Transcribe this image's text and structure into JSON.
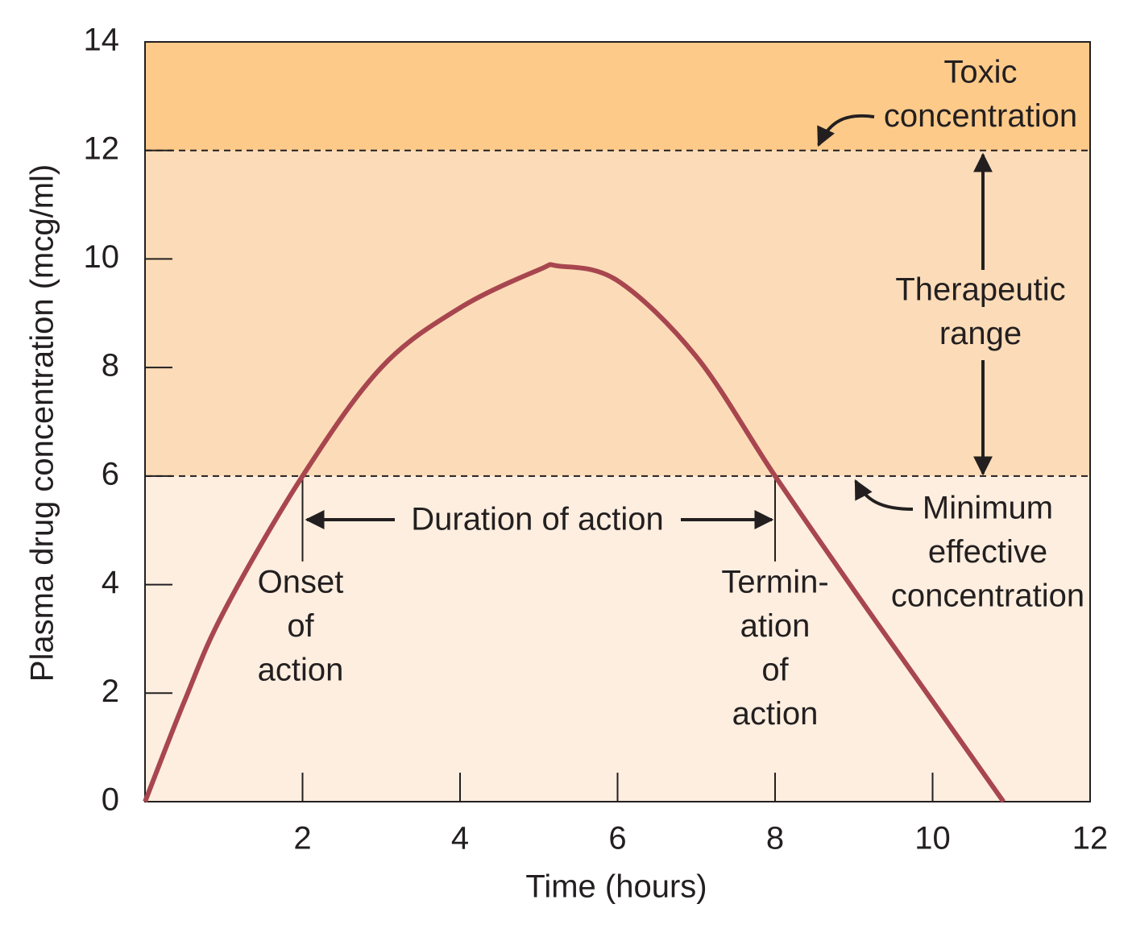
{
  "chart_data": {
    "type": "line",
    "x_label": "Time (hours)",
    "y_label": "Plasma drug concentration (mcg/ml)",
    "x": [
      0,
      0.5,
      1,
      2,
      3,
      4,
      5,
      5.25,
      6,
      7,
      8,
      9,
      10,
      10.9
    ],
    "values": [
      0,
      1.85,
      3.5,
      6,
      8,
      9.1,
      9.8,
      9.87,
      9.6,
      8.2,
      6,
      3.9,
      1.85,
      0
    ],
    "color": "#a8464f",
    "xlim": [
      0,
      12
    ],
    "xticks": [
      2,
      4,
      6,
      8,
      10,
      12
    ],
    "ylim": [
      0,
      14
    ],
    "yticks": [
      0,
      2,
      4,
      6,
      8,
      10,
      12,
      14
    ],
    "thresholds": [
      6,
      12
    ],
    "band_colors": [
      "#fdeedf",
      "#fcdcb8",
      "#fdca8a"
    ],
    "markers_x": [
      2,
      8
    ],
    "annotations": {
      "toxic": [
        "Toxic",
        "concentration"
      ],
      "therapeutic": [
        "Therapeutic",
        "range"
      ],
      "minimum": [
        "Minimum",
        "effective",
        "concentration"
      ],
      "duration": "Duration of action",
      "onset": [
        "Onset",
        "of",
        "action"
      ],
      "termination": [
        "Termin-",
        "ation",
        "of",
        "action"
      ]
    }
  }
}
